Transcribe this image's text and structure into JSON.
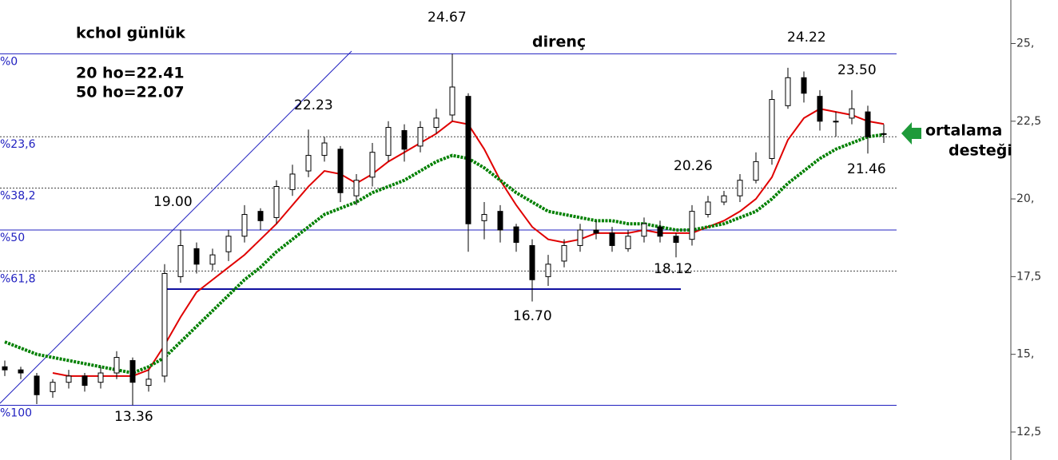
{
  "chart_data": {
    "type": "candlestick",
    "title": "kchol günlük",
    "notes": [
      "20 ho=22.41",
      "50 ho=22.07",
      "direnç",
      "ortalama",
      "desteği"
    ],
    "price_labels": [
      "24.67",
      "24.22",
      "23.50",
      "22.23",
      "19.00",
      "20.26",
      "21.46",
      "18.12",
      "16.70",
      "13.36"
    ],
    "ylim": [
      11.6,
      26.4
    ],
    "yticks": [
      {
        "value": 25,
        "label": "25,"
      },
      {
        "value": 22.5,
        "label": "22,5"
      },
      {
        "value": 20,
        "label": "20,"
      },
      {
        "value": 17.5,
        "label": "17,5"
      },
      {
        "value": 15,
        "label": "15,"
      },
      {
        "value": 12.5,
        "label": "12,5"
      }
    ],
    "fib_levels": [
      {
        "value": 24.67,
        "label": "%0",
        "style": "solid"
      },
      {
        "value": 22.0,
        "label": "%23,6",
        "style": "dashed"
      },
      {
        "value": 20.35,
        "label": "%38,2",
        "style": "dashed"
      },
      {
        "value": 19.0,
        "label": "%50",
        "style": "solid"
      },
      {
        "value": 17.68,
        "label": "%61,8",
        "style": "dashed"
      },
      {
        "value": 13.36,
        "label": "%100",
        "style": "solid"
      }
    ],
    "support": 17.1,
    "open": [
      14.6,
      14.5,
      14.3,
      13.8,
      14.1,
      14.3,
      14.1,
      14.4,
      14.8,
      14.0,
      14.3,
      17.5,
      18.4,
      17.9,
      18.3,
      18.8,
      19.6,
      19.4,
      20.3,
      20.9,
      21.4,
      21.6,
      20.1,
      20.7,
      21.4,
      22.2,
      21.7,
      22.3,
      22.7,
      23.3,
      19.3,
      19.6,
      19.1,
      18.5,
      17.5,
      18.0,
      18.5,
      19.0,
      18.9,
      18.4,
      18.8,
      19.1,
      18.8,
      18.7,
      19.5,
      19.9,
      20.1,
      20.6,
      21.3,
      23.0,
      23.9,
      23.3,
      22.5,
      22.6,
      22.8,
      22.1
    ],
    "high": [
      14.8,
      14.6,
      14.4,
      14.2,
      14.5,
      14.4,
      14.6,
      15.1,
      14.9,
      14.5,
      17.9,
      19.0,
      18.6,
      18.4,
      19.0,
      19.8,
      19.7,
      20.6,
      21.1,
      22.23,
      22.0,
      21.7,
      20.8,
      21.8,
      22.5,
      22.4,
      22.5,
      22.9,
      24.67,
      23.4,
      19.9,
      19.8,
      19.2,
      18.7,
      18.2,
      18.7,
      19.2,
      19.3,
      19.1,
      19.0,
      19.4,
      19.3,
      18.9,
      19.8,
      20.1,
      20.26,
      20.8,
      21.5,
      23.5,
      24.22,
      24.1,
      23.5,
      22.8,
      23.5,
      23.0,
      22.4
    ],
    "low": [
      14.3,
      14.2,
      13.4,
      13.6,
      13.9,
      13.8,
      13.9,
      14.2,
      13.36,
      13.8,
      14.1,
      17.3,
      17.6,
      17.7,
      18.0,
      18.6,
      19.0,
      19.2,
      20.1,
      20.7,
      21.2,
      19.9,
      19.8,
      20.4,
      21.2,
      21.2,
      21.5,
      22.1,
      22.5,
      18.3,
      18.7,
      18.6,
      18.3,
      16.7,
      17.2,
      17.8,
      18.3,
      18.7,
      18.3,
      18.3,
      18.6,
      18.6,
      18.12,
      18.5,
      19.4,
      19.8,
      19.9,
      20.5,
      21.1,
      22.9,
      23.1,
      22.2,
      22.0,
      22.4,
      21.46,
      21.8
    ],
    "close": [
      14.5,
      14.4,
      13.7,
      14.1,
      14.3,
      14.0,
      14.4,
      14.9,
      14.1,
      14.2,
      17.6,
      18.5,
      17.9,
      18.2,
      18.8,
      19.5,
      19.3,
      20.4,
      20.8,
      21.4,
      21.8,
      20.2,
      20.6,
      21.5,
      22.3,
      21.6,
      22.3,
      22.6,
      23.6,
      19.2,
      19.5,
      19.0,
      18.6,
      17.4,
      17.9,
      18.5,
      19.0,
      18.9,
      18.5,
      18.8,
      19.2,
      18.8,
      18.6,
      19.6,
      19.9,
      20.1,
      20.6,
      21.2,
      23.2,
      23.9,
      23.4,
      22.5,
      22.5,
      22.9,
      22.0,
      22.1
    ],
    "series": [
      {
        "name": "20 ho",
        "color": "#e00000",
        "values": [
          null,
          null,
          null,
          14.4,
          14.3,
          14.3,
          14.3,
          14.3,
          14.3,
          14.5,
          15.3,
          16.2,
          17.0,
          17.4,
          17.8,
          18.2,
          18.7,
          19.2,
          19.8,
          20.4,
          20.9,
          20.8,
          20.5,
          20.8,
          21.2,
          21.5,
          21.8,
          22.1,
          22.5,
          22.4,
          21.6,
          20.6,
          19.8,
          19.1,
          18.7,
          18.6,
          18.7,
          18.9,
          18.9,
          18.9,
          19.0,
          18.9,
          18.9,
          18.9,
          19.1,
          19.3,
          19.6,
          20.0,
          20.7,
          21.9,
          22.6,
          22.9,
          22.8,
          22.7,
          22.5,
          22.41
        ]
      },
      {
        "name": "50 ho",
        "color": "#008000",
        "values": [
          15.4,
          15.2,
          15.0,
          14.9,
          14.8,
          14.7,
          14.6,
          14.5,
          14.4,
          14.6,
          14.9,
          15.4,
          15.9,
          16.4,
          16.9,
          17.4,
          17.8,
          18.3,
          18.7,
          19.1,
          19.5,
          19.7,
          19.9,
          20.2,
          20.4,
          20.6,
          20.9,
          21.2,
          21.4,
          21.3,
          21.0,
          20.6,
          20.2,
          19.9,
          19.6,
          19.5,
          19.4,
          19.3,
          19.3,
          19.2,
          19.2,
          19.1,
          19.0,
          19.0,
          19.1,
          19.2,
          19.4,
          19.6,
          20.0,
          20.5,
          20.9,
          21.3,
          21.6,
          21.8,
          22.0,
          22.07
        ]
      }
    ]
  }
}
